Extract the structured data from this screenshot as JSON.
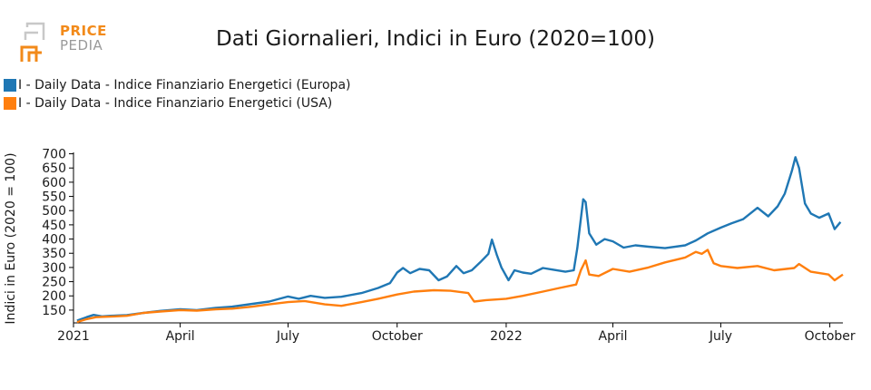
{
  "header": {
    "logo_top": "PRICE",
    "logo_bottom": "PEDIA",
    "title": "Dati Giornalieri, Indici in Euro (2020=100)"
  },
  "colors": {
    "europa": "#1f77b4",
    "usa": "#ff7f0e",
    "logo_orange": "#f28a1a",
    "logo_gray": "#9a9a9a"
  },
  "chart_data": {
    "type": "line",
    "title": "Dati Giornalieri, Indici in Euro (2020=100)",
    "ylabel": "Indici in Euro (2020 = 100)",
    "xlabel": "",
    "ylim": [
      105,
      705
    ],
    "yticks": [
      150,
      200,
      250,
      300,
      350,
      400,
      450,
      500,
      550,
      600,
      650,
      700
    ],
    "xlim": [
      "2021-01-01",
      "2022-10-12"
    ],
    "xticks": [
      {
        "date": "2021-01-01",
        "label": "2021"
      },
      {
        "date": "2021-04-01",
        "label": "April"
      },
      {
        "date": "2021-07-01",
        "label": "July"
      },
      {
        "date": "2021-10-01",
        "label": "October"
      },
      {
        "date": "2022-01-01",
        "label": "2022"
      },
      {
        "date": "2022-04-01",
        "label": "April"
      },
      {
        "date": "2022-07-01",
        "label": "July"
      },
      {
        "date": "2022-10-01",
        "label": "October"
      }
    ],
    "legend_position": "top-left",
    "series": [
      {
        "name": "I - Daily Data - Indice Finanziario Energetici (Europa)",
        "color": "#1f77b4",
        "points": [
          [
            "2021-01-04",
            113
          ],
          [
            "2021-01-12",
            125
          ],
          [
            "2021-01-18",
            133
          ],
          [
            "2021-01-25",
            128
          ],
          [
            "2021-02-01",
            130
          ],
          [
            "2021-02-15",
            132
          ],
          [
            "2021-03-01",
            140
          ],
          [
            "2021-03-15",
            147
          ],
          [
            "2021-04-01",
            153
          ],
          [
            "2021-04-15",
            150
          ],
          [
            "2021-05-01",
            158
          ],
          [
            "2021-05-15",
            162
          ],
          [
            "2021-06-01",
            172
          ],
          [
            "2021-06-15",
            180
          ],
          [
            "2021-07-01",
            198
          ],
          [
            "2021-07-10",
            190
          ],
          [
            "2021-07-20",
            200
          ],
          [
            "2021-08-01",
            193
          ],
          [
            "2021-08-15",
            197
          ],
          [
            "2021-09-01",
            210
          ],
          [
            "2021-09-15",
            228
          ],
          [
            "2021-09-25",
            245
          ],
          [
            "2021-10-01",
            282
          ],
          [
            "2021-10-06",
            298
          ],
          [
            "2021-10-12",
            280
          ],
          [
            "2021-10-20",
            295
          ],
          [
            "2021-10-28",
            290
          ],
          [
            "2021-11-05",
            255
          ],
          [
            "2021-11-12",
            268
          ],
          [
            "2021-11-20",
            305
          ],
          [
            "2021-11-26",
            280
          ],
          [
            "2021-12-03",
            290
          ],
          [
            "2021-12-10",
            318
          ],
          [
            "2021-12-17",
            348
          ],
          [
            "2021-12-20",
            398
          ],
          [
            "2021-12-24",
            345
          ],
          [
            "2021-12-28",
            300
          ],
          [
            "2022-01-03",
            255
          ],
          [
            "2022-01-08",
            290
          ],
          [
            "2022-01-15",
            282
          ],
          [
            "2022-01-22",
            278
          ],
          [
            "2022-02-01",
            298
          ],
          [
            "2022-02-10",
            292
          ],
          [
            "2022-02-20",
            285
          ],
          [
            "2022-02-27",
            290
          ],
          [
            "2022-03-02",
            368
          ],
          [
            "2022-03-07",
            540
          ],
          [
            "2022-03-09",
            530
          ],
          [
            "2022-03-12",
            420
          ],
          [
            "2022-03-18",
            380
          ],
          [
            "2022-03-25",
            400
          ],
          [
            "2022-04-01",
            392
          ],
          [
            "2022-04-10",
            370
          ],
          [
            "2022-04-20",
            378
          ],
          [
            "2022-05-01",
            373
          ],
          [
            "2022-05-15",
            368
          ],
          [
            "2022-06-01",
            378
          ],
          [
            "2022-06-10",
            395
          ],
          [
            "2022-06-20",
            420
          ],
          [
            "2022-07-01",
            440
          ],
          [
            "2022-07-10",
            455
          ],
          [
            "2022-07-20",
            470
          ],
          [
            "2022-08-01",
            510
          ],
          [
            "2022-08-10",
            480
          ],
          [
            "2022-08-18",
            515
          ],
          [
            "2022-08-24",
            560
          ],
          [
            "2022-08-30",
            640
          ],
          [
            "2022-09-02",
            688
          ],
          [
            "2022-09-05",
            650
          ],
          [
            "2022-09-10",
            525
          ],
          [
            "2022-09-15",
            490
          ],
          [
            "2022-09-22",
            475
          ],
          [
            "2022-09-30",
            490
          ],
          [
            "2022-10-05",
            435
          ],
          [
            "2022-10-10",
            460
          ]
        ]
      },
      {
        "name": "I - Daily Data - Indice Finanziario Energetici (USA)",
        "color": "#ff7f0e",
        "points": [
          [
            "2021-01-04",
            108
          ],
          [
            "2021-01-12",
            118
          ],
          [
            "2021-01-20",
            125
          ],
          [
            "2021-02-01",
            127
          ],
          [
            "2021-02-15",
            130
          ],
          [
            "2021-03-01",
            140
          ],
          [
            "2021-03-15",
            145
          ],
          [
            "2021-04-01",
            150
          ],
          [
            "2021-04-15",
            148
          ],
          [
            "2021-05-01",
            153
          ],
          [
            "2021-05-15",
            155
          ],
          [
            "2021-06-01",
            162
          ],
          [
            "2021-06-15",
            170
          ],
          [
            "2021-07-01",
            178
          ],
          [
            "2021-07-15",
            182
          ],
          [
            "2021-08-01",
            170
          ],
          [
            "2021-08-15",
            165
          ],
          [
            "2021-09-01",
            178
          ],
          [
            "2021-09-15",
            190
          ],
          [
            "2021-10-01",
            205
          ],
          [
            "2021-10-15",
            215
          ],
          [
            "2021-11-01",
            220
          ],
          [
            "2021-11-15",
            218
          ],
          [
            "2021-11-30",
            210
          ],
          [
            "2021-12-05",
            180
          ],
          [
            "2021-12-15",
            185
          ],
          [
            "2022-01-01",
            190
          ],
          [
            "2022-01-15",
            200
          ],
          [
            "2022-02-01",
            215
          ],
          [
            "2022-02-15",
            228
          ],
          [
            "2022-03-01",
            240
          ],
          [
            "2022-03-05",
            290
          ],
          [
            "2022-03-09",
            325
          ],
          [
            "2022-03-12",
            275
          ],
          [
            "2022-03-20",
            270
          ],
          [
            "2022-04-01",
            295
          ],
          [
            "2022-04-15",
            285
          ],
          [
            "2022-05-01",
            300
          ],
          [
            "2022-05-15",
            318
          ],
          [
            "2022-06-01",
            335
          ],
          [
            "2022-06-10",
            355
          ],
          [
            "2022-06-15",
            348
          ],
          [
            "2022-06-20",
            362
          ],
          [
            "2022-06-25",
            315
          ],
          [
            "2022-07-01",
            305
          ],
          [
            "2022-07-15",
            298
          ],
          [
            "2022-08-01",
            305
          ],
          [
            "2022-08-15",
            290
          ],
          [
            "2022-09-01",
            298
          ],
          [
            "2022-09-05",
            312
          ],
          [
            "2022-09-15",
            285
          ],
          [
            "2022-09-30",
            275
          ],
          [
            "2022-10-05",
            255
          ],
          [
            "2022-10-12",
            275
          ]
        ]
      }
    ]
  }
}
